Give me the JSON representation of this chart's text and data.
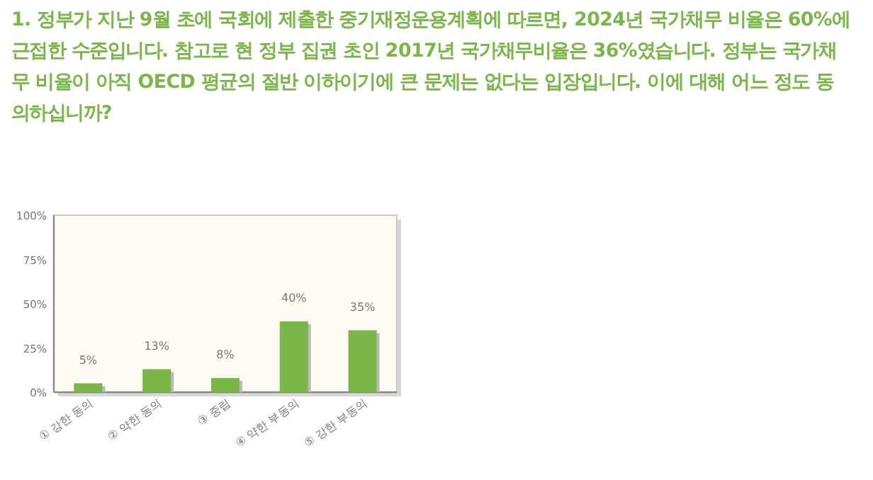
{
  "chart_data": {
    "type": "bar",
    "title": "1. 정부가 지난 9월 초에 국회에 제출한 중기재정운용계획에 따르면, 2024년 국가채무 비율은 60%에 근접한 수준입니다. 참고로 현 정부 집권 초인 2017년 국가채무비율은 36%였습니다. 정부는 국가채무 비율이 아직 OECD 평균의 절반 이하이기에 큰 문제는 없다는 입장입니다. 이에 대해 어느 정도 동의하십니까?",
    "categories": [
      "① 강한 동의",
      "② 약한 동의",
      "③ 중립",
      "④ 약한 부동의",
      "⑤ 강한 부동의"
    ],
    "values": [
      5,
      13,
      8,
      40,
      35
    ],
    "value_labels": [
      "5%",
      "13%",
      "8%",
      "40%",
      "35%"
    ],
    "color": "#7ab648",
    "ylim": [
      0,
      100
    ],
    "yticks": [
      {
        "value": 0,
        "label": "0%"
      },
      {
        "value": 25,
        "label": "25%"
      },
      {
        "value": 50,
        "label": "50%"
      },
      {
        "value": 75,
        "label": "75%"
      },
      {
        "value": 100,
        "label": "100%"
      }
    ],
    "grid": false
  }
}
